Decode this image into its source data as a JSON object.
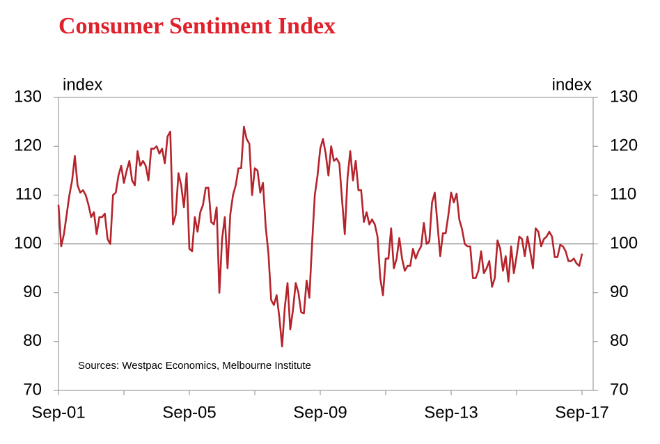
{
  "chart_data": {
    "type": "line",
    "title": "Consumer Sentiment Index",
    "y_label": "index",
    "y2_label": "index",
    "note": "Sources: Westpac Economics, Melbourne Institute",
    "categories": [
      "Sep-01",
      null,
      null,
      null,
      null,
      null,
      null,
      null,
      null,
      null,
      null,
      null,
      null,
      null,
      null,
      null,
      null,
      null,
      null,
      null,
      null,
      null,
      null,
      null,
      null,
      null,
      null,
      null,
      null,
      null,
      null,
      null,
      null,
      null,
      null,
      null,
      null,
      null,
      null,
      null,
      null,
      null,
      null,
      null,
      null,
      null,
      null,
      null,
      "Sep-05",
      null,
      null,
      null,
      null,
      null,
      null,
      null,
      null,
      null,
      null,
      null,
      null,
      null,
      null,
      null,
      null,
      null,
      null,
      null,
      null,
      null,
      null,
      null,
      null,
      null,
      null,
      null,
      null,
      null,
      null,
      null,
      null,
      null,
      null,
      null,
      null,
      null,
      null,
      null,
      null,
      null,
      null,
      null,
      null,
      null,
      null,
      null,
      "Sep-09",
      null,
      null,
      null,
      null,
      null,
      null,
      null,
      null,
      null,
      null,
      null,
      null,
      null,
      null,
      null,
      null,
      null,
      null,
      null,
      null,
      null,
      null,
      null,
      null,
      null,
      null,
      null,
      null,
      null,
      null,
      null,
      null,
      null,
      null,
      null,
      null,
      null,
      null,
      null,
      null,
      null,
      null,
      null,
      null,
      null,
      null,
      null,
      "Sep-13",
      null,
      null,
      null,
      null,
      null,
      null,
      null,
      null,
      null,
      null,
      null,
      null,
      null,
      null,
      null,
      null,
      null,
      null,
      null,
      null,
      null,
      null,
      null,
      null,
      null,
      null,
      null,
      null,
      null,
      null,
      null,
      null,
      null,
      null,
      null,
      null,
      null,
      null,
      null,
      null,
      null,
      null,
      null,
      null,
      null,
      null,
      null,
      "Sep-17"
    ],
    "series": [
      {
        "name": "Consumer Sentiment Index",
        "color": "#b5232b",
        "values": [
          108,
          99.5,
          102,
          106,
          110,
          113,
          118,
          112,
          110.5,
          111,
          110,
          108,
          105.5,
          106.5,
          102,
          105.5,
          105.5,
          106.2,
          101,
          100,
          110,
          110.5,
          114,
          116,
          112.5,
          115,
          117,
          113,
          112,
          119,
          116,
          117,
          116,
          113,
          119.5,
          119.5,
          120,
          118.5,
          119.5,
          116.5,
          122,
          123,
          104,
          106,
          114.5,
          112,
          107.5,
          114.5,
          99,
          98.5,
          105.5,
          102.5,
          106.5,
          108,
          111.5,
          111.5,
          104.5,
          104,
          107.5,
          90,
          101,
          105.5,
          95,
          106,
          110,
          112,
          115.5,
          115.5,
          124,
          121.5,
          120.5,
          110,
          115.5,
          115,
          110.5,
          112.5,
          103.5,
          98,
          88.5,
          87.5,
          89.5,
          85,
          79,
          87,
          92,
          82.5,
          86.5,
          92,
          90,
          86,
          85.8,
          92.5,
          89,
          100,
          110,
          114,
          119.5,
          121.5,
          118.5,
          114,
          120,
          117,
          117.5,
          116.5,
          109,
          102,
          113.5,
          119,
          113,
          117,
          111,
          111,
          104.5,
          106.5,
          104,
          105,
          104,
          101.5,
          93,
          89.5,
          97,
          97,
          103.2,
          95,
          97,
          101.2,
          97,
          94.5,
          95.5,
          95.5,
          99,
          97,
          98.5,
          99.5,
          104.3,
          100,
          100.5,
          108.5,
          110.5,
          104,
          97.5,
          102.2,
          102.2,
          106,
          110.5,
          108.5,
          110.3,
          105,
          103,
          100,
          99.5,
          99.5,
          93,
          93,
          94.5,
          98.5,
          94,
          95,
          96.5,
          91.2,
          93,
          100.7,
          99,
          94.5,
          97.5,
          92.3,
          99.5,
          94,
          97.5,
          101.5,
          101,
          97.5,
          101.5,
          98.5,
          95,
          103.2,
          102.5,
          99.5,
          101,
          101.5,
          102.5,
          101.5,
          97.3,
          97.3,
          99.8,
          99.5,
          98.5,
          96.5,
          96.5,
          97,
          96,
          95.5,
          98
        ]
      }
    ],
    "ylim": [
      70,
      130
    ],
    "yticks": [
      70,
      80,
      90,
      100,
      110,
      120,
      130
    ],
    "y2lim": [
      70,
      130
    ],
    "y2ticks": [
      70,
      80,
      90,
      100,
      110,
      120,
      130
    ],
    "reference_line": 100,
    "grid": false
  }
}
